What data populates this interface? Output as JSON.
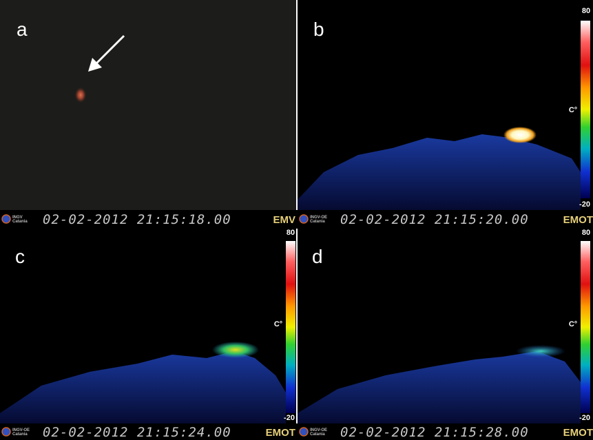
{
  "panels": [
    {
      "label": "a",
      "logo": [
        "INGV",
        "Catania"
      ],
      "timestamp": "02-02-2012 21:15:18.00",
      "camera": "EMV"
    },
    {
      "label": "b",
      "logo": [
        "INGV-OE",
        "Catania"
      ],
      "timestamp": "02-02-2012 21:15:20.00",
      "camera": "EMOT",
      "colorbar": {
        "max": 80,
        "unit": "C°",
        "min": -20
      }
    },
    {
      "label": "c",
      "logo": [
        "INGV-OE",
        "Catania"
      ],
      "timestamp": "02-02-2012 21:15:24.00",
      "camera": "EMOT",
      "colorbar": {
        "max": 80,
        "unit": "C°",
        "min": -20
      }
    },
    {
      "label": "d",
      "logo": [
        "INGV-OE",
        "Catania"
      ],
      "timestamp": "02-02-2012 21:15:28.00",
      "camera": "EMOT",
      "colorbar": {
        "max": 80,
        "unit": "C°",
        "min": -20
      }
    }
  ]
}
